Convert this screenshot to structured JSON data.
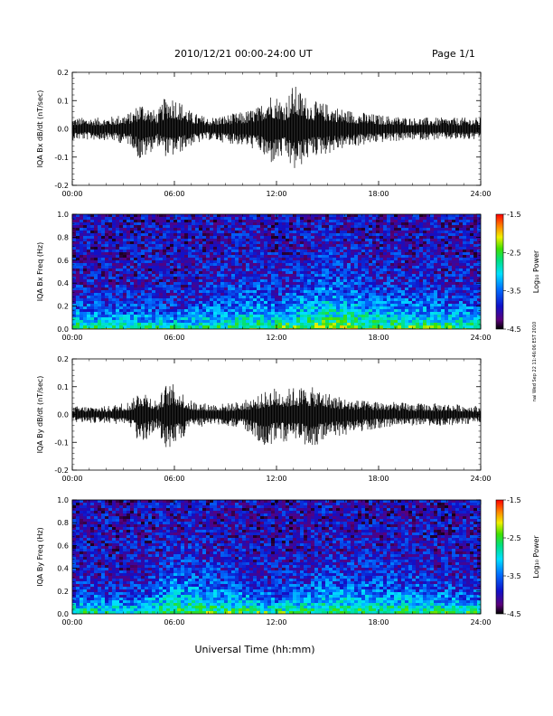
{
  "header": {
    "title": "2010/12/21  00:00-24:00 UT",
    "page": "Page 1/1",
    "side_stamp": "nai Wed Sep 22 11:46:06 EST 2010"
  },
  "xlabel": "Universal Time (hh:mm)",
  "x_ticks": [
    "00:00",
    "06:00",
    "12:00",
    "18:00",
    "24:00"
  ],
  "colorbar": {
    "label": "Log₁₀ Power",
    "ticks": [
      "-1.5",
      "-2.5",
      "-3.5",
      "-4.5"
    ],
    "range": [
      -4.5,
      -1.5
    ]
  },
  "chart_data": [
    {
      "type": "line",
      "ylabel": "IQA Bx dB/dt (nT/sec)",
      "y_ticks": [
        "0.2",
        "0.1",
        "0.0",
        "-0.1",
        "-0.2"
      ],
      "ylim": [
        -0.2,
        0.2
      ],
      "xlim": [
        "00:00",
        "24:00"
      ],
      "series": [
        {
          "x": [
            "00:00",
            "02:00",
            "03:30",
            "04:00",
            "05:00",
            "05:30",
            "06:00",
            "07:00",
            "08:00",
            "09:00",
            "10:00",
            "11:00",
            "11:30",
            "12:00",
            "12:30",
            "13:00",
            "14:00",
            "15:00",
            "16:00",
            "17:00",
            "18:00",
            "20:00",
            "22:00",
            "24:00"
          ],
          "max": [
            0.04,
            0.04,
            0.06,
            0.1,
            0.06,
            0.12,
            0.12,
            0.06,
            0.04,
            0.05,
            0.06,
            0.08,
            0.13,
            0.12,
            0.1,
            0.16,
            0.1,
            0.09,
            0.07,
            0.06,
            0.05,
            0.04,
            0.04,
            0.04
          ],
          "min": [
            -0.04,
            -0.04,
            -0.06,
            -0.12,
            -0.06,
            -0.1,
            -0.1,
            -0.06,
            -0.04,
            -0.05,
            -0.06,
            -0.08,
            -0.13,
            -0.12,
            -0.1,
            -0.16,
            -0.1,
            -0.09,
            -0.07,
            -0.06,
            -0.05,
            -0.04,
            -0.04,
            -0.04
          ]
        }
      ]
    },
    {
      "type": "heatmap",
      "ylabel": "IQA Bx Freq (Hz)",
      "y_ticks": [
        "1.0",
        "0.8",
        "0.6",
        "0.4",
        "0.2",
        "0.0"
      ],
      "ylim": [
        0.0,
        1.0
      ],
      "xlim": [
        "00:00",
        "24:00"
      ],
      "zlim": [
        -4.5,
        -1.5
      ],
      "background_log_power": -4.0,
      "low_freq_enhancement": [
        {
          "t": "00:00",
          "height_hz": 0.15,
          "strength": 1.5
        },
        {
          "t": "06:00",
          "height_hz": 0.12,
          "strength": 1.3
        },
        {
          "t": "11:00",
          "height_hz": 0.25,
          "strength": 1.4
        },
        {
          "t": "12:00",
          "height_hz": 0.15,
          "strength": 1.6
        },
        {
          "t": "15:00",
          "height_hz": 0.3,
          "strength": 1.7
        },
        {
          "t": "18:00",
          "height_hz": 0.2,
          "strength": 1.6
        },
        {
          "t": "24:00",
          "height_hz": 0.15,
          "strength": 1.5
        }
      ]
    },
    {
      "type": "line",
      "ylabel": "IQA By dB/dt (nT/sec)",
      "y_ticks": [
        "0.2",
        "0.1",
        "0.0",
        "-0.1",
        "-0.2"
      ],
      "ylim": [
        -0.2,
        0.2
      ],
      "xlim": [
        "00:00",
        "24:00"
      ],
      "series": [
        {
          "x": [
            "00:00",
            "02:00",
            "03:30",
            "04:00",
            "05:00",
            "05:30",
            "06:00",
            "07:00",
            "08:00",
            "09:00",
            "10:00",
            "11:00",
            "11:30",
            "12:00",
            "12:30",
            "13:00",
            "14:00",
            "15:00",
            "16:00",
            "17:00",
            "18:00",
            "20:00",
            "22:00",
            "24:00"
          ],
          "max": [
            0.03,
            0.03,
            0.05,
            0.1,
            0.05,
            0.11,
            0.11,
            0.05,
            0.04,
            0.04,
            0.05,
            0.07,
            0.09,
            0.1,
            0.09,
            0.1,
            0.1,
            0.08,
            0.06,
            0.05,
            0.05,
            0.04,
            0.04,
            0.03
          ],
          "min": [
            -0.03,
            -0.03,
            -0.05,
            -0.12,
            -0.05,
            -0.14,
            -0.12,
            -0.05,
            -0.04,
            -0.04,
            -0.05,
            -0.1,
            -0.12,
            -0.09,
            -0.1,
            -0.09,
            -0.13,
            -0.08,
            -0.08,
            -0.06,
            -0.05,
            -0.04,
            -0.04,
            -0.03
          ]
        }
      ]
    },
    {
      "type": "heatmap",
      "ylabel": "IQA By Freq (Hz)",
      "y_ticks": [
        "1.0",
        "0.8",
        "0.6",
        "0.4",
        "0.2",
        "0.0"
      ],
      "ylim": [
        0.0,
        1.0
      ],
      "xlim": [
        "00:00",
        "24:00"
      ],
      "zlim": [
        -4.5,
        -1.5
      ],
      "background_log_power": -4.0,
      "low_freq_enhancement": [
        {
          "t": "00:00",
          "height_hz": 0.12,
          "strength": 1.4
        },
        {
          "t": "04:00",
          "height_hz": 0.12,
          "strength": 1.3
        },
        {
          "t": "06:00",
          "height_hz": 0.25,
          "strength": 1.6
        },
        {
          "t": "12:00",
          "height_hz": 0.12,
          "strength": 1.5
        },
        {
          "t": "15:00",
          "height_hz": 0.2,
          "strength": 1.5
        },
        {
          "t": "18:00",
          "height_hz": 0.2,
          "strength": 1.5
        },
        {
          "t": "24:00",
          "height_hz": 0.12,
          "strength": 1.4
        }
      ]
    }
  ]
}
